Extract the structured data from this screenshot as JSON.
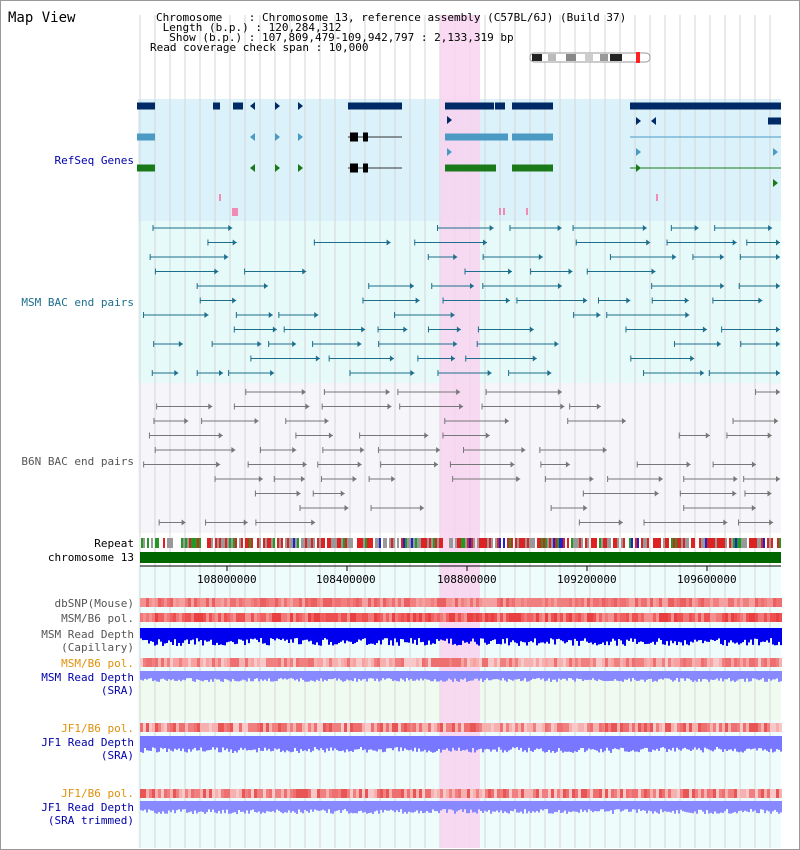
{
  "title": "Map View",
  "info": {
    "chromosome_line": "Chromosome    : Chromosome 13, reference assembly (C57BL/6J) (Build 37)",
    "length_line": " Length (b.p.) : 120,284,312",
    "show_line": "  Show (b.p.) : 107,809,479-109,942,797 : 2,133,319 bp",
    "coverage_line": "Read coverage check span : 10,000"
  },
  "tracks": {
    "refseq": "RefSeq Genes",
    "msm_bac": "MSM BAC end pairs",
    "b6n_bac": "B6N BAC end pairs",
    "repeat": "Repeat",
    "chromosome": "chromosome 13",
    "dbsnp": "dbSNP(Mouse)",
    "msm_b6_pol_1": "MSM/B6 pol.",
    "msm_read_depth_cap_1": "MSM Read Depth",
    "msm_read_depth_cap_2": "(Capillary)",
    "msm_b6_pol_2": "MSM/B6 pol.",
    "msm_read_depth_sra_1": "MSM Read Depth",
    "msm_read_depth_sra_2": "(SRA)",
    "jf1_b6_pol_1": "JF1/B6 pol.",
    "jf1_read_depth_sra_1": "JF1 Read Depth",
    "jf1_read_depth_sra_2": "(SRA)",
    "jf1_b6_pol_2": "JF1/B6 pol.",
    "jf1_read_depth_trim_1": "JF1 Read Depth",
    "jf1_read_depth_trim_2": "(SRA trimmed)"
  },
  "axis": {
    "ticks": [
      "108000000",
      "108400000",
      "108800000",
      "109200000",
      "109600000"
    ]
  },
  "colors": {
    "refseq_bg": "#dbf2fb",
    "msm_bg": "#e6fafa",
    "b6n_bg": "#f5f5fa",
    "highlight": "#f8d3f0",
    "chromosome_bar": "#006600",
    "msm_line": "#1c6e8c",
    "b6n_line": "#777777",
    "depth_blue": "#0000ee",
    "depth_light": "#8888ff"
  }
}
